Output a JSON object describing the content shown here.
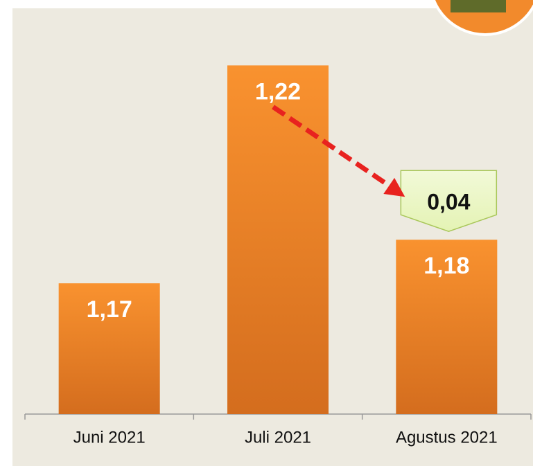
{
  "chart_data": {
    "type": "bar",
    "categories": [
      "Juni 2021",
      "Juli 2021",
      "Agustus 2021"
    ],
    "values": [
      1.17,
      1.22,
      1.18
    ],
    "value_labels": [
      "1,17",
      "1,22",
      "1,18"
    ],
    "color": "#f28a2c",
    "ylim": [
      1.14,
      1.235
    ],
    "annotation": {
      "value": 0.04,
      "label": "0,04"
    }
  }
}
